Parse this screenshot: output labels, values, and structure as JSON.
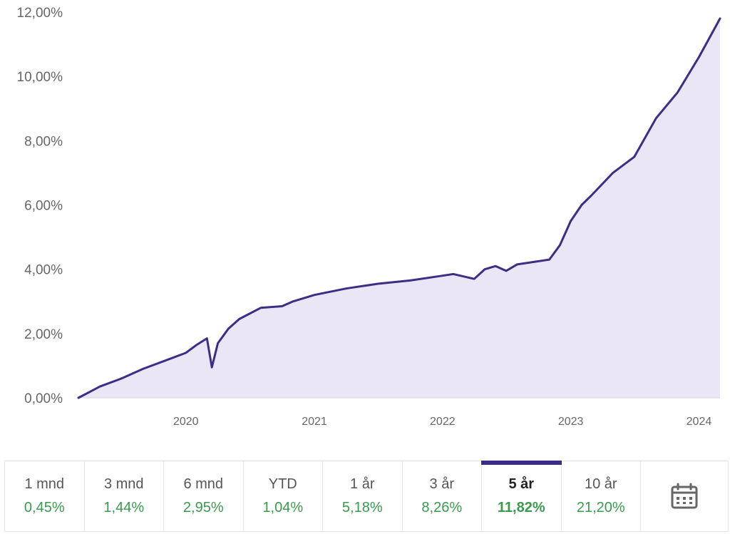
{
  "chart_data": {
    "type": "area",
    "title": "",
    "xlabel": "",
    "ylabel": "",
    "ylim": [
      0,
      12
    ],
    "yticks": [
      0,
      2,
      4,
      6,
      8,
      10,
      12
    ],
    "ytick_labels": [
      "0,00%",
      "2,00%",
      "4,00%",
      "6,00%",
      "8,00%",
      "10,00%",
      "12,00%"
    ],
    "xtick_labels": [
      "2020",
      "2021",
      "2022",
      "2023",
      "2024"
    ],
    "x_range": [
      "2019-03",
      "2024-03"
    ],
    "grid": false,
    "line_color": "#3d2d86",
    "fill_color": "#ebe6f5",
    "series": [
      {
        "x": [
          "2019-03",
          "2019-05",
          "2019-07",
          "2019-09",
          "2019-11",
          "2020-01",
          "2020-02",
          "2020-03",
          "2020-03-15",
          "2020-04",
          "2020-05",
          "2020-06",
          "2020-08",
          "2020-10",
          "2020-11",
          "2021-01",
          "2021-04",
          "2021-07",
          "2021-10",
          "2022-01",
          "2022-02",
          "2022-04",
          "2022-05",
          "2022-06",
          "2022-07",
          "2022-08",
          "2022-09",
          "2022-10",
          "2022-11",
          "2022-12",
          "2023-01",
          "2023-02",
          "2023-03",
          "2023-05",
          "2023-07",
          "2023-09",
          "2023-11",
          "2024-01",
          "2024-03"
        ],
        "values": [
          0.0,
          0.35,
          0.6,
          0.9,
          1.15,
          1.4,
          1.65,
          1.85,
          0.95,
          1.7,
          2.15,
          2.45,
          2.8,
          2.85,
          3.0,
          3.2,
          3.4,
          3.55,
          3.65,
          3.8,
          3.85,
          3.7,
          4.0,
          4.1,
          3.95,
          4.15,
          4.2,
          4.25,
          4.3,
          4.75,
          5.5,
          6.0,
          6.3,
          7.0,
          7.5,
          8.7,
          9.5,
          10.6,
          11.8
        ]
      }
    ]
  },
  "periods": [
    {
      "label": "1 mnd",
      "value": "0,45%"
    },
    {
      "label": "3 mnd",
      "value": "1,44%"
    },
    {
      "label": "6 mnd",
      "value": "2,95%"
    },
    {
      "label": "YTD",
      "value": "1,04%"
    },
    {
      "label": "1 år",
      "value": "5,18%"
    },
    {
      "label": "3 år",
      "value": "8,26%"
    },
    {
      "label": "5 år",
      "value": "11,82%",
      "active": true
    },
    {
      "label": "10 år",
      "value": "21,20%"
    }
  ],
  "calendar_icon": "calendar-icon",
  "colors": {
    "accent": "#3d2d86",
    "positive": "#3a9a4e"
  }
}
